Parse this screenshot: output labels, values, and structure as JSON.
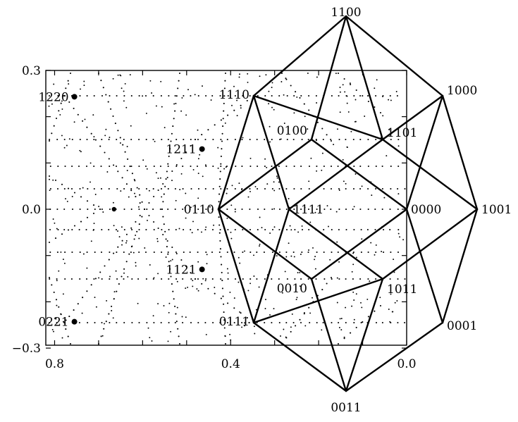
{
  "plot": {
    "x_ticks": [
      {
        "value": 0.8,
        "label": "0.8"
      },
      {
        "value": 0.4,
        "label": "0.4"
      },
      {
        "value": 0.0,
        "label": "0.0"
      }
    ],
    "y_ticks": [
      {
        "value": 0.3,
        "label": "0.3"
      },
      {
        "value": 0.0,
        "label": "0.0"
      },
      {
        "value": -0.3,
        "label": "−0.3"
      }
    ],
    "marked_points": [
      {
        "label": "1220",
        "x": 0.755,
        "y": 0.243
      },
      {
        "label": "1211",
        "x": 0.465,
        "y": 0.13
      },
      {
        "label": "1121",
        "x": 0.465,
        "y": -0.13
      },
      {
        "label": "0221",
        "x": 0.755,
        "y": -0.243
      }
    ],
    "unlabeled_points": [
      {
        "x": 0.665,
        "y": 0.0
      }
    ]
  },
  "polytope": {
    "vertices": [
      {
        "id": "1100",
        "label": "1100"
      },
      {
        "id": "1110",
        "label": "1110"
      },
      {
        "id": "1000",
        "label": "1000"
      },
      {
        "id": "0100",
        "label": "0100"
      },
      {
        "id": "1101",
        "label": "1101"
      },
      {
        "id": "0110",
        "label": "0110"
      },
      {
        "id": "1111",
        "label": "1111"
      },
      {
        "id": "0000",
        "label": "0000"
      },
      {
        "id": "1001",
        "label": "1001"
      },
      {
        "id": "0010",
        "label": "0010"
      },
      {
        "id": "1011",
        "label": "1011"
      },
      {
        "id": "0111",
        "label": "0111"
      },
      {
        "id": "0001",
        "label": "0001"
      },
      {
        "id": "0011",
        "label": "0011"
      }
    ],
    "edges": [
      [
        "1100",
        "1110"
      ],
      [
        "1100",
        "1000"
      ],
      [
        "1100",
        "0100"
      ],
      [
        "1100",
        "1101"
      ],
      [
        "1110",
        "0110"
      ],
      [
        "1110",
        "1111"
      ],
      [
        "1110",
        "1101"
      ],
      [
        "1000",
        "1101"
      ],
      [
        "1000",
        "1001"
      ],
      [
        "1000",
        "0000"
      ],
      [
        "0100",
        "0110"
      ],
      [
        "0100",
        "0000"
      ],
      [
        "1101",
        "1111"
      ],
      [
        "1101",
        "1001"
      ],
      [
        "0110",
        "0010"
      ],
      [
        "0110",
        "0111"
      ],
      [
        "1111",
        "0111"
      ],
      [
        "1111",
        "1011"
      ],
      [
        "0000",
        "0010"
      ],
      [
        "0000",
        "0001"
      ],
      [
        "1001",
        "1011"
      ],
      [
        "1001",
        "0001"
      ],
      [
        "0010",
        "0011"
      ],
      [
        "1011",
        "0111"
      ],
      [
        "1011",
        "0011"
      ],
      [
        "0111",
        "0011"
      ],
      [
        "0001",
        "0011"
      ]
    ]
  }
}
